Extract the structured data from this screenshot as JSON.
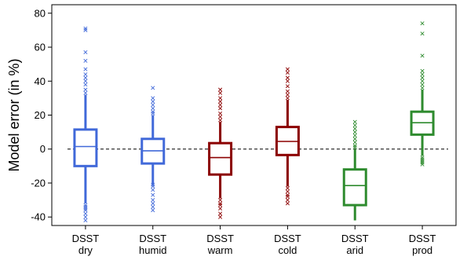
{
  "chart_data": {
    "type": "box",
    "ylabel": "Model error (in %)",
    "ylim": [
      -45,
      85
    ],
    "yticks": [
      -40,
      -20,
      0,
      20,
      40,
      60,
      80
    ],
    "reference_line": 0,
    "grid": false,
    "categories": [
      {
        "line1": "DSST",
        "line2": "dry",
        "color": "#4169d9"
      },
      {
        "line1": "DSST",
        "line2": "humid",
        "color": "#4169d9"
      },
      {
        "line1": "DSST",
        "line2": "warm",
        "color": "#8b0000"
      },
      {
        "line1": "DSST",
        "line2": "cold",
        "color": "#8b0000"
      },
      {
        "line1": "DSST",
        "line2": "arid",
        "color": "#2e8b2e"
      },
      {
        "line1": "DSST",
        "line2": "prod",
        "color": "#2e8b2e"
      }
    ],
    "boxes": [
      {
        "whisker_low": -32,
        "q1": -10,
        "median": 1.5,
        "q3": 11.5,
        "whisker_high": 32,
        "outliers": [
          -33,
          -34,
          -35,
          -36,
          -38,
          -40,
          -42,
          33,
          35,
          38,
          40,
          42,
          44,
          47,
          52,
          57,
          70,
          71
        ]
      },
      {
        "whisker_low": -21,
        "q1": -8.5,
        "median": -1,
        "q3": 6,
        "whisker_high": 20,
        "outliers": [
          -21,
          -22,
          -24,
          -27,
          -30,
          -32,
          -34,
          -36,
          21,
          22,
          24,
          26,
          28,
          30,
          36
        ]
      },
      {
        "whisker_low": -29,
        "q1": -15,
        "median": -5,
        "q3": 3.5,
        "whisker_high": 16,
        "outliers": [
          -30,
          -32,
          -33,
          -35,
          -38,
          -40,
          17,
          19,
          21,
          24,
          26,
          28,
          30,
          33,
          35
        ]
      },
      {
        "whisker_low": -22,
        "q1": -3.5,
        "median": 4.5,
        "q3": 13,
        "whisker_high": 29,
        "outliers": [
          -23,
          -25,
          -27,
          -28,
          -30,
          -32,
          30,
          32,
          34,
          37,
          40,
          42,
          45,
          47
        ]
      },
      {
        "whisker_low": -42,
        "q1": -33,
        "median": -21.5,
        "q3": -12,
        "whisker_high": 0,
        "outliers": [
          1,
          2,
          4,
          6,
          8,
          10,
          12,
          14,
          16
        ]
      },
      {
        "whisker_low": -4,
        "q1": 8.5,
        "median": 15.5,
        "q3": 22,
        "whisker_high": 35,
        "outliers": [
          -5,
          -6,
          -7,
          -8,
          -9,
          36,
          38,
          40,
          42,
          44,
          46,
          55,
          68,
          74
        ]
      }
    ]
  }
}
